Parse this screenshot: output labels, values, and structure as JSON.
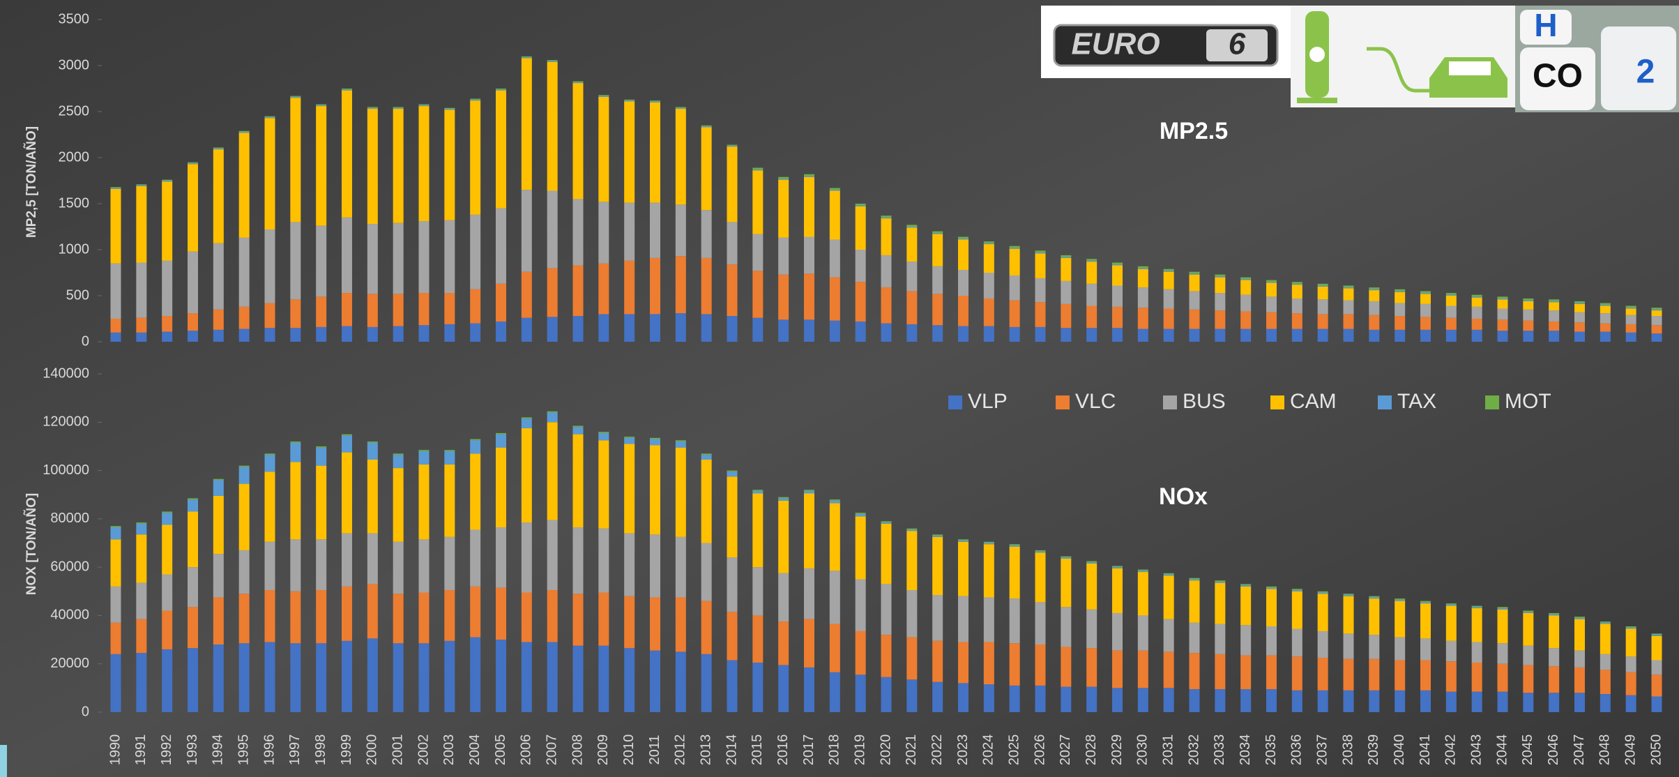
{
  "logos": {
    "euro": "EURO",
    "six": "6",
    "h": "H",
    "co": "CO",
    "two": "2"
  },
  "chart_data": [
    {
      "type": "bar",
      "stacked": true,
      "title": "MP2.5",
      "ylabel": "MP2,5 [TON/AÑO]",
      "ylim": [
        0,
        3500
      ],
      "yticks": [
        0,
        500,
        1000,
        1500,
        2000,
        2500,
        3000,
        3500
      ],
      "grid": false,
      "series": [
        {
          "color": "#4472c4",
          "values": [
            100,
            100,
            110,
            120,
            130,
            140,
            150,
            150,
            160,
            170,
            160,
            170,
            180,
            190,
            200,
            220,
            260,
            270,
            280,
            300,
            300,
            300,
            310,
            300,
            280,
            260,
            240,
            240,
            230,
            220,
            200,
            190,
            180,
            170,
            170,
            160,
            160,
            150,
            150,
            150,
            140,
            140,
            140,
            140,
            140,
            140,
            140,
            140,
            140,
            130,
            130,
            130,
            130,
            130,
            120,
            120,
            120,
            110,
            110,
            100,
            90
          ]
        },
        {
          "color": "#ed7d31",
          "values": [
            150,
            160,
            170,
            190,
            220,
            240,
            270,
            310,
            330,
            360,
            360,
            350,
            350,
            340,
            370,
            410,
            500,
            530,
            550,
            550,
            580,
            610,
            620,
            610,
            560,
            510,
            490,
            500,
            470,
            430,
            390,
            360,
            340,
            330,
            300,
            290,
            270,
            260,
            240,
            230,
            230,
            220,
            210,
            200,
            190,
            180,
            170,
            160,
            160,
            160,
            150,
            140,
            130,
            120,
            120,
            110,
            100,
            100,
            90,
            90,
            90
          ]
        },
        {
          "color": "#a5a5a5",
          "values": [
            600,
            600,
            600,
            670,
            720,
            750,
            800,
            840,
            770,
            820,
            760,
            770,
            780,
            790,
            810,
            820,
            890,
            840,
            720,
            670,
            630,
            600,
            560,
            520,
            460,
            400,
            400,
            400,
            410,
            350,
            350,
            320,
            300,
            280,
            280,
            270,
            260,
            250,
            240,
            230,
            220,
            210,
            200,
            190,
            180,
            170,
            160,
            160,
            150,
            150,
            140,
            140,
            130,
            130,
            120,
            120,
            120,
            110,
            110,
            100,
            100
          ]
        },
        {
          "color": "#ffc000",
          "values": [
            810,
            830,
            860,
            950,
            1020,
            1140,
            1210,
            1350,
            1300,
            1380,
            1250,
            1240,
            1250,
            1200,
            1240,
            1280,
            1430,
            1400,
            1260,
            1140,
            1100,
            1090,
            1040,
            900,
            820,
            690,
            630,
            650,
            530,
            470,
            400,
            370,
            350,
            330,
            310,
            290,
            270,
            250,
            240,
            220,
            200,
            190,
            180,
            170,
            160,
            150,
            150,
            140,
            130,
            120,
            120,
            110,
            110,
            100,
            100,
            90,
            90,
            90,
            80,
            70,
            60
          ]
        },
        {
          "color": "#5b9bd5",
          "values": [
            10,
            10,
            10,
            10,
            10,
            10,
            10,
            10,
            10,
            10,
            10,
            10,
            10,
            10,
            10,
            10,
            10,
            10,
            10,
            10,
            10,
            10,
            10,
            10,
            10,
            10,
            10,
            10,
            10,
            10,
            10,
            10,
            10,
            10,
            10,
            10,
            10,
            10,
            10,
            10,
            10,
            10,
            10,
            10,
            10,
            10,
            10,
            10,
            10,
            10,
            10,
            10,
            10,
            10,
            10,
            10,
            10,
            10,
            10,
            10,
            10
          ]
        },
        {
          "color": "#70ad47",
          "values": [
            10,
            10,
            10,
            10,
            10,
            10,
            10,
            10,
            10,
            10,
            10,
            10,
            10,
            10,
            10,
            10,
            10,
            10,
            10,
            10,
            10,
            10,
            10,
            10,
            10,
            20,
            20,
            20,
            20,
            20,
            20,
            20,
            20,
            20,
            20,
            20,
            20,
            20,
            20,
            20,
            20,
            20,
            20,
            20,
            20,
            20,
            20,
            20,
            20,
            20,
            20,
            20,
            20,
            20,
            20,
            20,
            20,
            20,
            20,
            20,
            20
          ]
        }
      ]
    },
    {
      "type": "bar",
      "stacked": true,
      "title": "NOx",
      "ylabel": "NOX [TON/AÑO]",
      "ylim": [
        0,
        140000
      ],
      "yticks": [
        0,
        20000,
        40000,
        60000,
        80000,
        100000,
        120000,
        140000
      ],
      "grid": false,
      "legend": "top-right",
      "categories": [
        "1990",
        "1991",
        "1992",
        "1993",
        "1994",
        "1995",
        "1996",
        "1997",
        "1998",
        "1999",
        "2000",
        "2001",
        "2002",
        "2003",
        "2004",
        "2005",
        "2006",
        "2007",
        "2008",
        "2009",
        "2010",
        "2011",
        "2012",
        "2013",
        "2014",
        "2015",
        "2016",
        "2017",
        "2018",
        "2019",
        "2020",
        "2021",
        "2022",
        "2023",
        "2024",
        "2025",
        "2026",
        "2027",
        "2028",
        "2029",
        "2030",
        "2031",
        "2032",
        "2033",
        "2034",
        "2035",
        "2036",
        "2037",
        "2038",
        "2039",
        "2040",
        "2041",
        "2042",
        "2043",
        "2044",
        "2045",
        "2046",
        "2047",
        "2048",
        "2049",
        "2050"
      ],
      "series": [
        {
          "name": "VLP",
          "color": "#4472c4",
          "values": [
            24000,
            24500,
            26000,
            26500,
            28000,
            28500,
            29000,
            28500,
            28500,
            29500,
            30500,
            28500,
            28500,
            29500,
            31000,
            30000,
            29000,
            29000,
            27500,
            27500,
            26500,
            25500,
            25000,
            24000,
            21500,
            20500,
            19500,
            18500,
            16500,
            15500,
            14500,
            13500,
            12500,
            12000,
            11500,
            11000,
            11000,
            10500,
            10500,
            10000,
            10000,
            10000,
            9500,
            9500,
            9500,
            9500,
            9000,
            9000,
            9000,
            9000,
            9000,
            9000,
            8500,
            8500,
            8500,
            8000,
            8000,
            8000,
            7500,
            7000,
            6500
          ]
        },
        {
          "name": "VLC",
          "color": "#ed7d31",
          "values": [
            13000,
            14000,
            16000,
            17000,
            19500,
            20500,
            21500,
            21500,
            22000,
            22500,
            22500,
            20500,
            21000,
            21000,
            21000,
            21500,
            20500,
            21500,
            21500,
            22000,
            21500,
            22000,
            22500,
            22000,
            20000,
            19500,
            18000,
            20000,
            20000,
            18000,
            17500,
            17500,
            17000,
            17000,
            17500,
            17500,
            17000,
            16500,
            16000,
            15500,
            15500,
            15000,
            15000,
            14500,
            14000,
            14000,
            14000,
            13500,
            13000,
            13000,
            12500,
            12500,
            12500,
            12000,
            11500,
            11500,
            11000,
            10500,
            10000,
            9500,
            9000
          ]
        },
        {
          "name": "BUS",
          "color": "#a5a5a5",
          "values": [
            15000,
            15000,
            15000,
            16500,
            18000,
            18000,
            20000,
            21500,
            21000,
            22000,
            21000,
            21500,
            22000,
            22000,
            23500,
            25000,
            29000,
            29000,
            27500,
            26500,
            26000,
            26000,
            25000,
            24000,
            22500,
            20000,
            20000,
            21000,
            22000,
            21500,
            21000,
            19500,
            19000,
            19000,
            18500,
            18500,
            17500,
            16500,
            16000,
            15500,
            14500,
            13500,
            12500,
            12500,
            12500,
            12000,
            11500,
            11000,
            10500,
            10000,
            9500,
            9000,
            8500,
            8500,
            8500,
            8000,
            7500,
            7000,
            6500,
            6500,
            6000
          ]
        },
        {
          "name": "CAM",
          "color": "#ffc000",
          "values": [
            19500,
            20000,
            20500,
            23000,
            24000,
            27500,
            29000,
            32000,
            30500,
            33500,
            30500,
            30500,
            31000,
            30000,
            31500,
            33000,
            39000,
            40500,
            38500,
            36500,
            37000,
            37000,
            37000,
            34500,
            33500,
            30500,
            30000,
            31000,
            28000,
            26000,
            25000,
            24500,
            24000,
            22500,
            22000,
            21500,
            20500,
            20000,
            19000,
            18500,
            18000,
            18000,
            17500,
            17000,
            16000,
            15500,
            15500,
            15500,
            15500,
            15000,
            15000,
            14500,
            14500,
            14000,
            14000,
            13500,
            13500,
            13000,
            12500,
            11500,
            10000
          ]
        },
        {
          "name": "TAX",
          "color": "#5b9bd5",
          "values": [
            5000,
            4500,
            5000,
            5000,
            6500,
            7000,
            7000,
            8000,
            7500,
            7000,
            7000,
            5500,
            5500,
            5500,
            5500,
            5500,
            4000,
            4000,
            3000,
            3000,
            2500,
            2500,
            2500,
            2000,
            2000,
            1000,
            1000,
            1000,
            1000,
            1000,
            500,
            500,
            500,
            500,
            500,
            500,
            500,
            500,
            500,
            500,
            500,
            500,
            500,
            500,
            500,
            500,
            500,
            500,
            500,
            500,
            500,
            500,
            500,
            500,
            500,
            500,
            500,
            500,
            500,
            500,
            500
          ]
        },
        {
          "name": "MOT",
          "color": "#70ad47",
          "values": [
            500,
            500,
            500,
            500,
            500,
            500,
            500,
            500,
            500,
            500,
            500,
            500,
            500,
            500,
            500,
            500,
            500,
            500,
            500,
            500,
            500,
            500,
            500,
            500,
            500,
            500,
            500,
            500,
            500,
            500,
            500,
            500,
            500,
            500,
            500,
            500,
            500,
            500,
            500,
            500,
            500,
            500,
            500,
            500,
            500,
            500,
            500,
            500,
            500,
            500,
            500,
            500,
            500,
            500,
            500,
            500,
            500,
            500,
            500,
            500,
            500
          ]
        }
      ]
    }
  ]
}
